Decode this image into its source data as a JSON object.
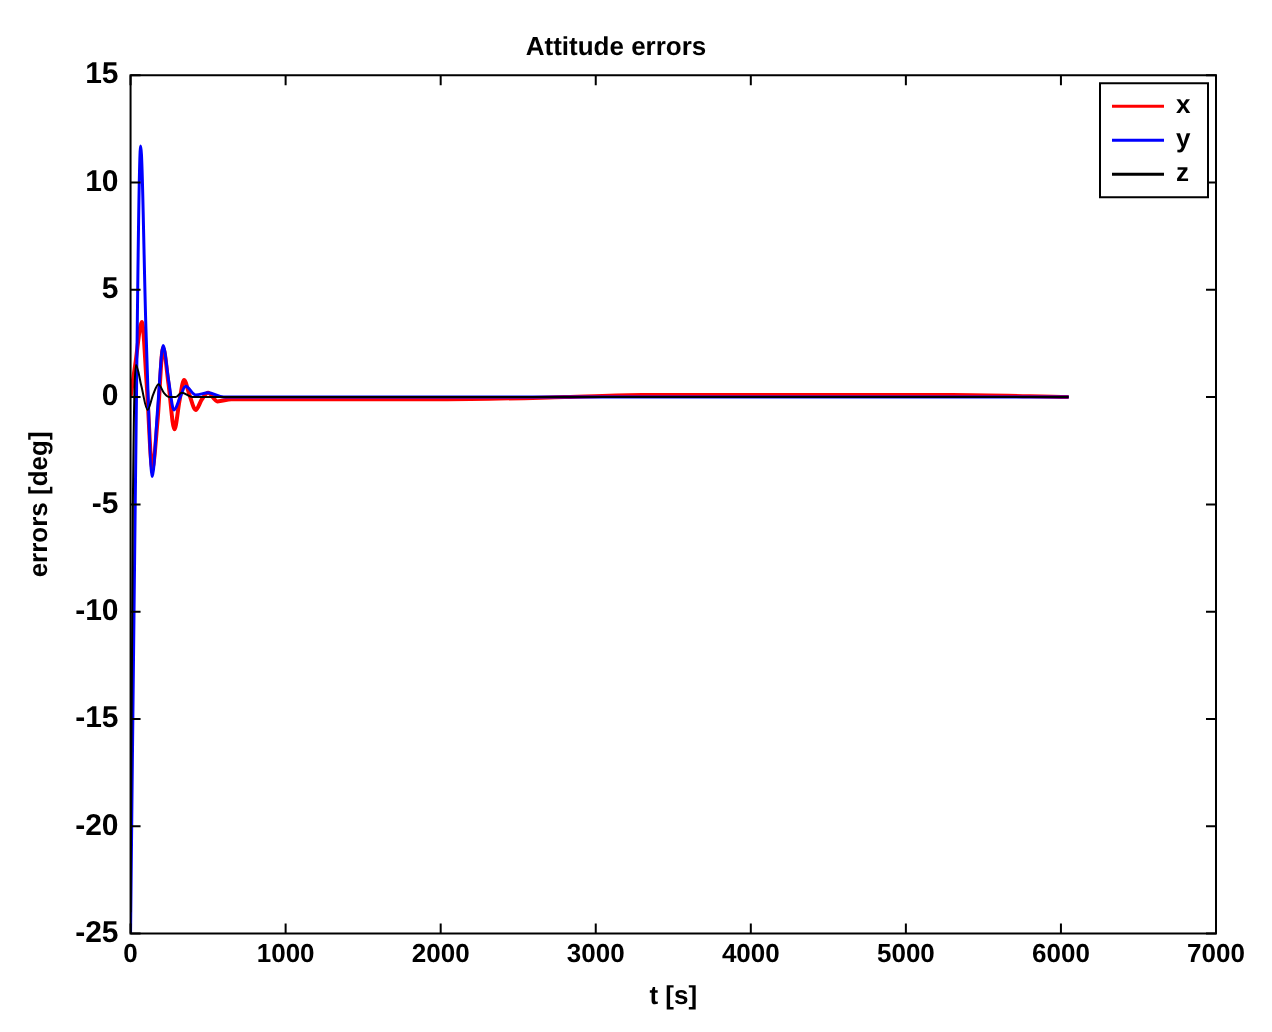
{
  "chart_data": {
    "type": "line",
    "title": "Attitude errors",
    "xlabel": "t [s]",
    "ylabel": "errors [deg]",
    "xlim": [
      0,
      7000
    ],
    "xticks": [
      0,
      1000,
      2000,
      3000,
      4000,
      5000,
      6000,
      7000
    ],
    "ylim": [
      -25,
      15
    ],
    "yticks": [
      -25,
      -20,
      -15,
      -10,
      -5,
      0,
      5,
      10,
      15
    ],
    "grid": false,
    "legend": "top right",
    "marker": "none",
    "line_style": "solid",
    "series": [
      {
        "name": "x",
        "color": "#ff0000",
        "x": [
          0,
          30,
          73,
          105,
          140,
          175,
          210,
          245,
          283,
          315,
          345,
          380,
          420,
          460,
          500,
          560,
          650,
          800,
          1200,
          2000,
          2800,
          3300,
          4000,
          5000,
          5300,
          6050
        ],
        "values": [
          0,
          1.5,
          3.5,
          0.5,
          -3.3,
          -1,
          2.3,
          0.6,
          -1.5,
          -0.2,
          0.8,
          0.1,
          -0.6,
          -0.1,
          0.2,
          -0.2,
          -0.1,
          -0.1,
          -0.1,
          -0.1,
          0,
          0.1,
          0.1,
          0.1,
          0.1,
          0
        ]
      },
      {
        "name": "y",
        "color": "#0000ff",
        "x": [
          0,
          30,
          65,
          100,
          140,
          175,
          210,
          245,
          280,
          320,
          355,
          420,
          500,
          600,
          1000,
          3000,
          6050
        ],
        "values": [
          -25,
          -5,
          11.7,
          3,
          -3.7,
          -0.5,
          2.4,
          0.8,
          -0.6,
          0,
          0.5,
          0.1,
          0.2,
          0,
          0,
          0,
          0
        ]
      },
      {
        "name": "z",
        "color": "#000000",
        "x": [
          0,
          15,
          35,
          70,
          110,
          145,
          180,
          215,
          250,
          290,
          330,
          400,
          600,
          1000,
          3000,
          6050
        ],
        "values": [
          -24,
          -5,
          1.5,
          0.5,
          -0.6,
          0.1,
          0.6,
          0.2,
          0,
          0,
          0.2,
          0,
          0,
          0,
          0,
          0
        ]
      }
    ]
  }
}
